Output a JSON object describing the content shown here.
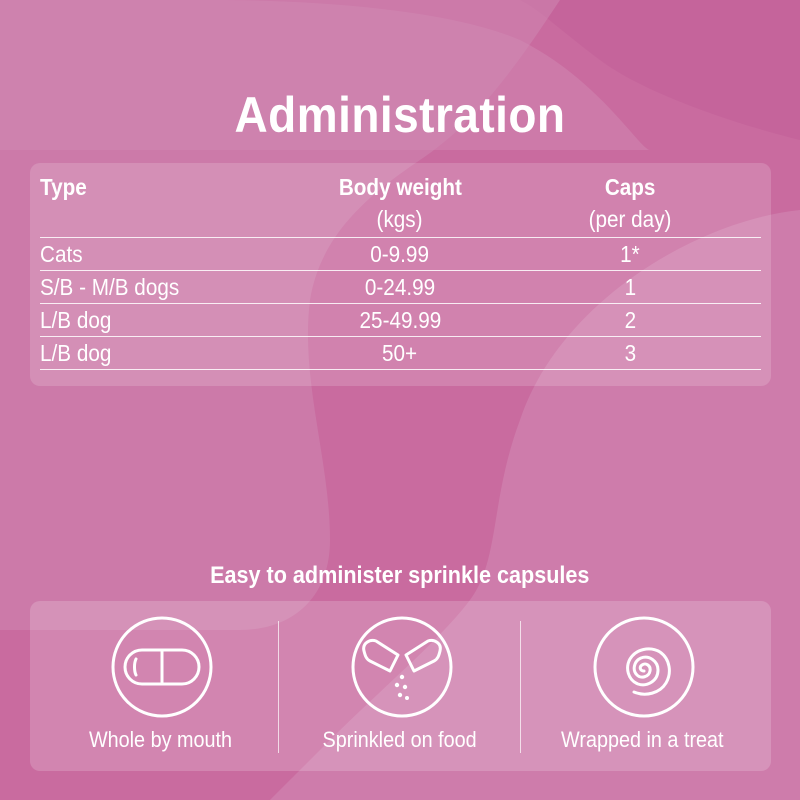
{
  "title": "Administration",
  "table": {
    "headers": {
      "type": "Type",
      "weight": "Body weight",
      "weight_unit": "(kgs)",
      "caps": "Caps",
      "caps_unit": "(per day)"
    },
    "rows": [
      {
        "type": "Cats",
        "weight": "0-9.99",
        "caps": "1*"
      },
      {
        "type": "S/B - M/B dogs",
        "weight": "0-24.99",
        "caps": "1"
      },
      {
        "type": "L/B dog",
        "weight": "25-49.99",
        "caps": "2"
      },
      {
        "type": "L/B dog",
        "weight": "50+",
        "caps": "3"
      }
    ]
  },
  "methods": {
    "subtitle": "Easy to administer sprinkle capsules",
    "items": [
      {
        "label": "Whole by mouth",
        "icon": "capsule-icon"
      },
      {
        "label": "Sprinkled on food",
        "icon": "open-capsule-icon"
      },
      {
        "label": "Wrapped in a treat",
        "icon": "spiral-icon"
      }
    ]
  },
  "colors": {
    "background": "#c96b9f",
    "text": "#ffffff"
  }
}
